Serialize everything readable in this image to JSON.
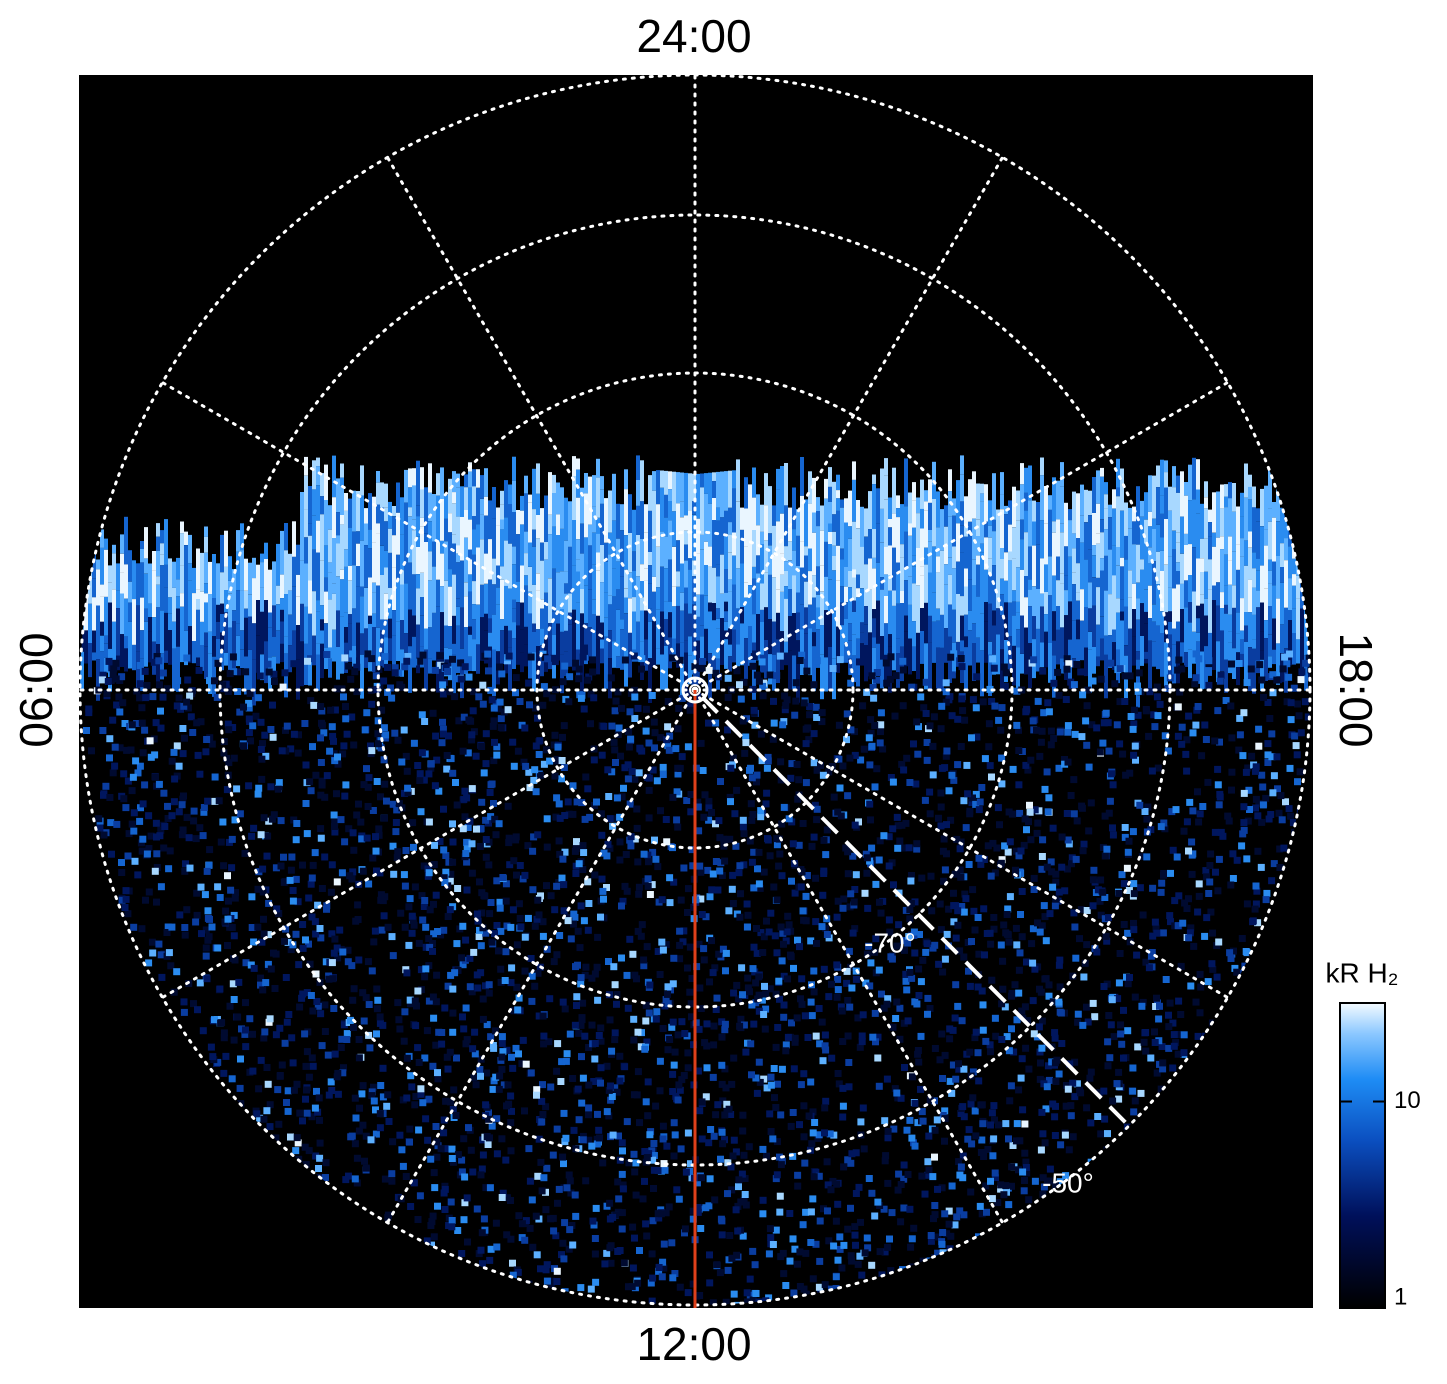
{
  "chart_data": {
    "type": "polar-image",
    "hour_labels": {
      "top": "24:00",
      "left": "06:00",
      "bottom": "12:00",
      "right": "18:00"
    },
    "lat_labels": [
      "-70°",
      "-50°"
    ],
    "colorbar": {
      "label": "kR H₂",
      "scale": "log",
      "lim": [
        1,
        30
      ],
      "ticks": [
        1,
        10
      ]
    }
  }
}
